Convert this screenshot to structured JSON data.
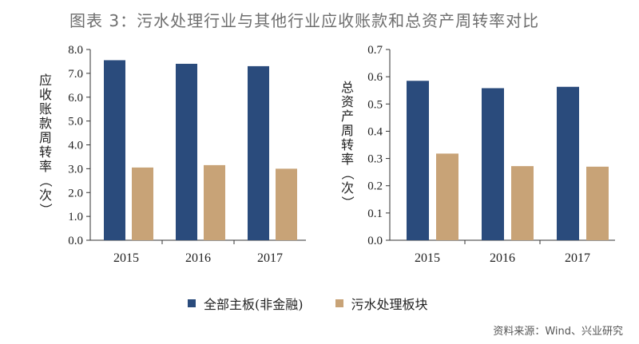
{
  "title": "图表 3：污水处理行业与其他行业应收账款和总资产周转率对比",
  "colors": {
    "series1": "#2a4b7c",
    "series2": "#c8a377",
    "title": "#6e6e6e"
  },
  "legend": {
    "placement": "bottom"
  },
  "source": "资料来源：Wind、兴业研究",
  "chart_data": [
    {
      "type": "bar",
      "categories": [
        "2015",
        "2016",
        "2017"
      ],
      "ylabel": "应收账款周转率（次）",
      "ylim": [
        0,
        8
      ],
      "yticks": [
        "0.0",
        "1.0",
        "2.0",
        "3.0",
        "4.0",
        "5.0",
        "6.0",
        "7.0",
        "8.0"
      ],
      "series": [
        {
          "name": "全部主板(非金融)",
          "values": [
            7.55,
            7.4,
            7.3
          ]
        },
        {
          "name": "污水处理板块",
          "values": [
            3.05,
            3.15,
            3.0
          ]
        }
      ]
    },
    {
      "type": "bar",
      "categories": [
        "2015",
        "2016",
        "2017"
      ],
      "ylabel": "总资产周转率（次）",
      "ylim": [
        0,
        0.7
      ],
      "yticks": [
        "0.0",
        "0.1",
        "0.2",
        "0.3",
        "0.4",
        "0.5",
        "0.6",
        "0.7"
      ],
      "series": [
        {
          "name": "全部主板(非金融)",
          "values": [
            0.585,
            0.558,
            0.563
          ]
        },
        {
          "name": "污水处理板块",
          "values": [
            0.318,
            0.272,
            0.27
          ]
        }
      ]
    }
  ]
}
